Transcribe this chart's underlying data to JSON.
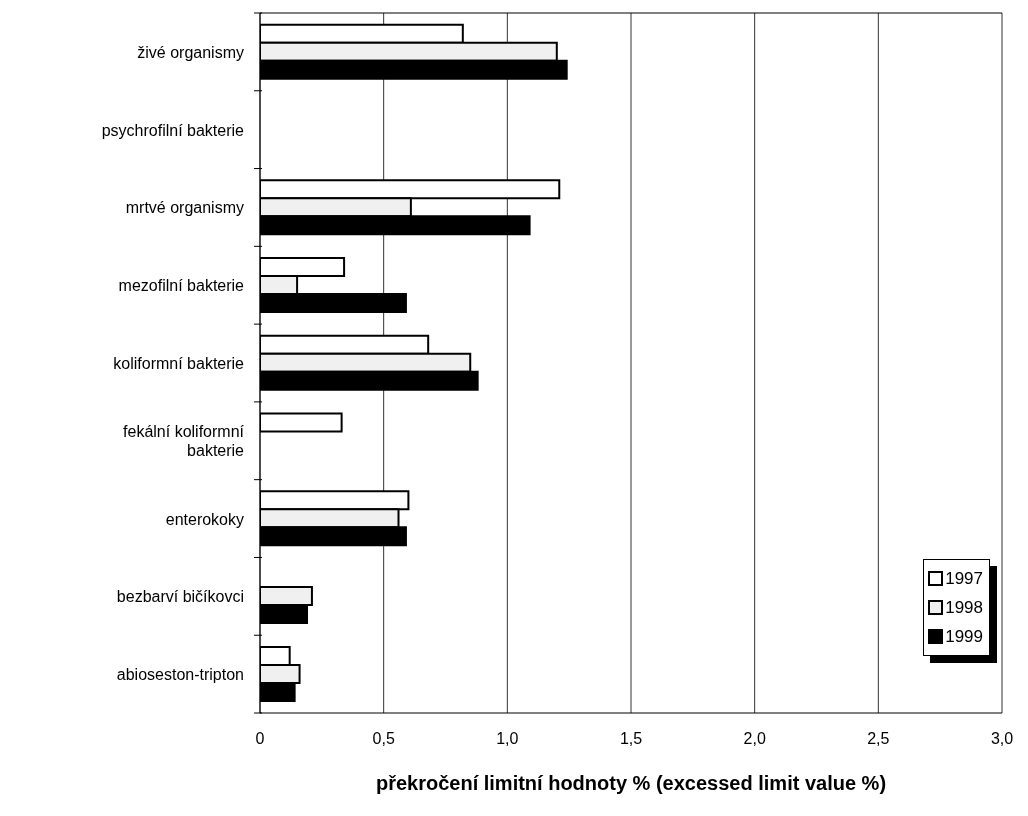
{
  "chart_data": {
    "type": "bar",
    "orientation": "horizontal",
    "xlabel": "překročení limitní hodnoty % (excessed limit value %)",
    "categories": [
      "živé organismy",
      "psychrofilní bakterie",
      "mrtvé organismy",
      "mezofilní bakterie",
      "koliformní bakterie",
      "fekální koliformní bakterie",
      "enterokoky",
      "bezbarví bičíkovci",
      "abioseston-tripton"
    ],
    "series": [
      {
        "name": "1997",
        "color": "#ffffff",
        "values": [
          0.82,
          null,
          1.21,
          0.34,
          0.68,
          0.33,
          0.6,
          null,
          0.12
        ]
      },
      {
        "name": "1998",
        "color": "#f0f0f0",
        "values": [
          1.2,
          null,
          0.61,
          0.15,
          0.85,
          null,
          0.56,
          0.21,
          0.16
        ]
      },
      {
        "name": "1999",
        "color": "#000000",
        "values": [
          1.24,
          null,
          1.09,
          0.59,
          0.88,
          null,
          0.59,
          0.19,
          0.14
        ]
      }
    ],
    "xlim": [
      0,
      3
    ],
    "xticks": [
      0,
      {
        "value": 0.5,
        "label": "0,5"
      },
      {
        "value": 1,
        "label": "1,0"
      },
      {
        "value": 1.5,
        "label": "1,5"
      },
      {
        "value": 2,
        "label": "2,0"
      },
      {
        "value": 2.5,
        "label": "2,5"
      },
      {
        "value": 3,
        "label": "3,0"
      }
    ],
    "grid": "x",
    "legend": "bottom right"
  }
}
